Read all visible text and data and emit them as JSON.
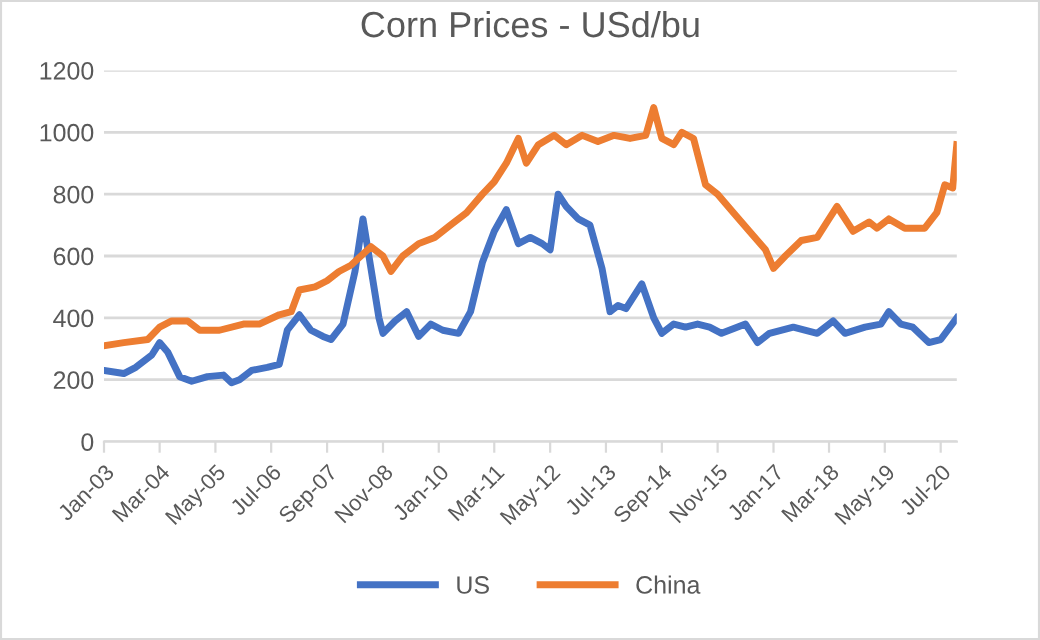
{
  "chart_data": {
    "type": "line",
    "title": "Corn Prices - USd/bu",
    "ylim": [
      0,
      1200
    ],
    "yticks": [
      0,
      200,
      400,
      600,
      800,
      1000,
      1200
    ],
    "xlim": [
      "2003-01",
      "2020-11"
    ],
    "xticks": [
      {
        "value": "2003-01",
        "label": "Jan-03"
      },
      {
        "value": "2004-03",
        "label": "Mar-04"
      },
      {
        "value": "2005-05",
        "label": "May-05"
      },
      {
        "value": "2006-07",
        "label": "Jul-06"
      },
      {
        "value": "2007-09",
        "label": "Sep-07"
      },
      {
        "value": "2008-11",
        "label": "Nov-08"
      },
      {
        "value": "2010-01",
        "label": "Jan-10"
      },
      {
        "value": "2011-03",
        "label": "Mar-11"
      },
      {
        "value": "2012-05",
        "label": "May-12"
      },
      {
        "value": "2013-07",
        "label": "Jul-13"
      },
      {
        "value": "2014-09",
        "label": "Sep-14"
      },
      {
        "value": "2015-11",
        "label": "Nov-15"
      },
      {
        "value": "2017-01",
        "label": "Jan-17"
      },
      {
        "value": "2018-03",
        "label": "Mar-18"
      },
      {
        "value": "2019-05",
        "label": "May-19"
      },
      {
        "value": "2020-07",
        "label": "Jul-20"
      }
    ],
    "grid": "y",
    "legend": "bottom",
    "marker": "none",
    "line_style": "solid",
    "series": [
      {
        "name": "US",
        "color": "#4472c4",
        "x": [
          "2003-01",
          "2003-06",
          "2003-09",
          "2004-01",
          "2004-03",
          "2004-05",
          "2004-08",
          "2004-11",
          "2005-03",
          "2005-07",
          "2005-09",
          "2005-11",
          "2006-02",
          "2006-06",
          "2006-09",
          "2006-11",
          "2007-02",
          "2007-05",
          "2007-08",
          "2007-10",
          "2008-01",
          "2008-04",
          "2008-06",
          "2008-08",
          "2008-10",
          "2008-11",
          "2009-02",
          "2009-05",
          "2009-08",
          "2009-11",
          "2010-02",
          "2010-06",
          "2010-09",
          "2010-12",
          "2011-03",
          "2011-06",
          "2011-09",
          "2011-12",
          "2012-03",
          "2012-05",
          "2012-07",
          "2012-09",
          "2012-12",
          "2013-03",
          "2013-06",
          "2013-08",
          "2013-10",
          "2013-12",
          "2014-04",
          "2014-07",
          "2014-09",
          "2014-12",
          "2015-03",
          "2015-06",
          "2015-09",
          "2015-12",
          "2016-06",
          "2016-09",
          "2016-12",
          "2017-06",
          "2017-12",
          "2018-04",
          "2018-07",
          "2018-12",
          "2019-04",
          "2019-06",
          "2019-09",
          "2019-12",
          "2020-04",
          "2020-07",
          "2020-11"
        ],
        "values": [
          230,
          220,
          240,
          280,
          320,
          290,
          210,
          195,
          210,
          215,
          190,
          200,
          230,
          240,
          250,
          360,
          410,
          360,
          340,
          330,
          380,
          550,
          720,
          560,
          400,
          350,
          390,
          420,
          340,
          380,
          360,
          350,
          420,
          580,
          680,
          750,
          640,
          660,
          640,
          620,
          800,
          760,
          720,
          700,
          560,
          420,
          440,
          430,
          510,
          400,
          350,
          380,
          370,
          380,
          370,
          350,
          380,
          320,
          350,
          370,
          350,
          390,
          350,
          370,
          380,
          420,
          380,
          370,
          320,
          330,
          400
        ]
      },
      {
        "name": "China",
        "color": "#ed7d31",
        "x": [
          "2003-01",
          "2003-06",
          "2003-12",
          "2004-03",
          "2004-06",
          "2004-10",
          "2005-01",
          "2005-06",
          "2005-12",
          "2006-04",
          "2006-09",
          "2006-12",
          "2007-02",
          "2007-06",
          "2007-09",
          "2007-12",
          "2008-03",
          "2008-08",
          "2008-11",
          "2009-01",
          "2009-04",
          "2009-08",
          "2009-12",
          "2010-04",
          "2010-08",
          "2010-12",
          "2011-03",
          "2011-06",
          "2011-09",
          "2011-11",
          "2012-02",
          "2012-06",
          "2012-09",
          "2013-01",
          "2013-05",
          "2013-09",
          "2014-01",
          "2014-05",
          "2014-07",
          "2014-09",
          "2014-12",
          "2015-02",
          "2015-05",
          "2015-08",
          "2015-11",
          "2016-03",
          "2016-07",
          "2016-11",
          "2017-01",
          "2017-04",
          "2017-08",
          "2017-12",
          "2018-03",
          "2018-05",
          "2018-09",
          "2019-01",
          "2019-03",
          "2019-06",
          "2019-10",
          "2020-03",
          "2020-06",
          "2020-08",
          "2020-10",
          "2020-11"
        ],
        "values": [
          310,
          320,
          330,
          370,
          390,
          390,
          360,
          360,
          380,
          380,
          410,
          420,
          490,
          500,
          520,
          550,
          570,
          630,
          600,
          550,
          600,
          640,
          660,
          700,
          740,
          800,
          840,
          900,
          980,
          900,
          960,
          990,
          960,
          990,
          970,
          990,
          980,
          990,
          1080,
          980,
          960,
          1000,
          980,
          830,
          800,
          740,
          680,
          620,
          560,
          600,
          650,
          660,
          720,
          760,
          680,
          710,
          690,
          720,
          690,
          690,
          740,
          830,
          820,
          960
        ]
      }
    ]
  }
}
